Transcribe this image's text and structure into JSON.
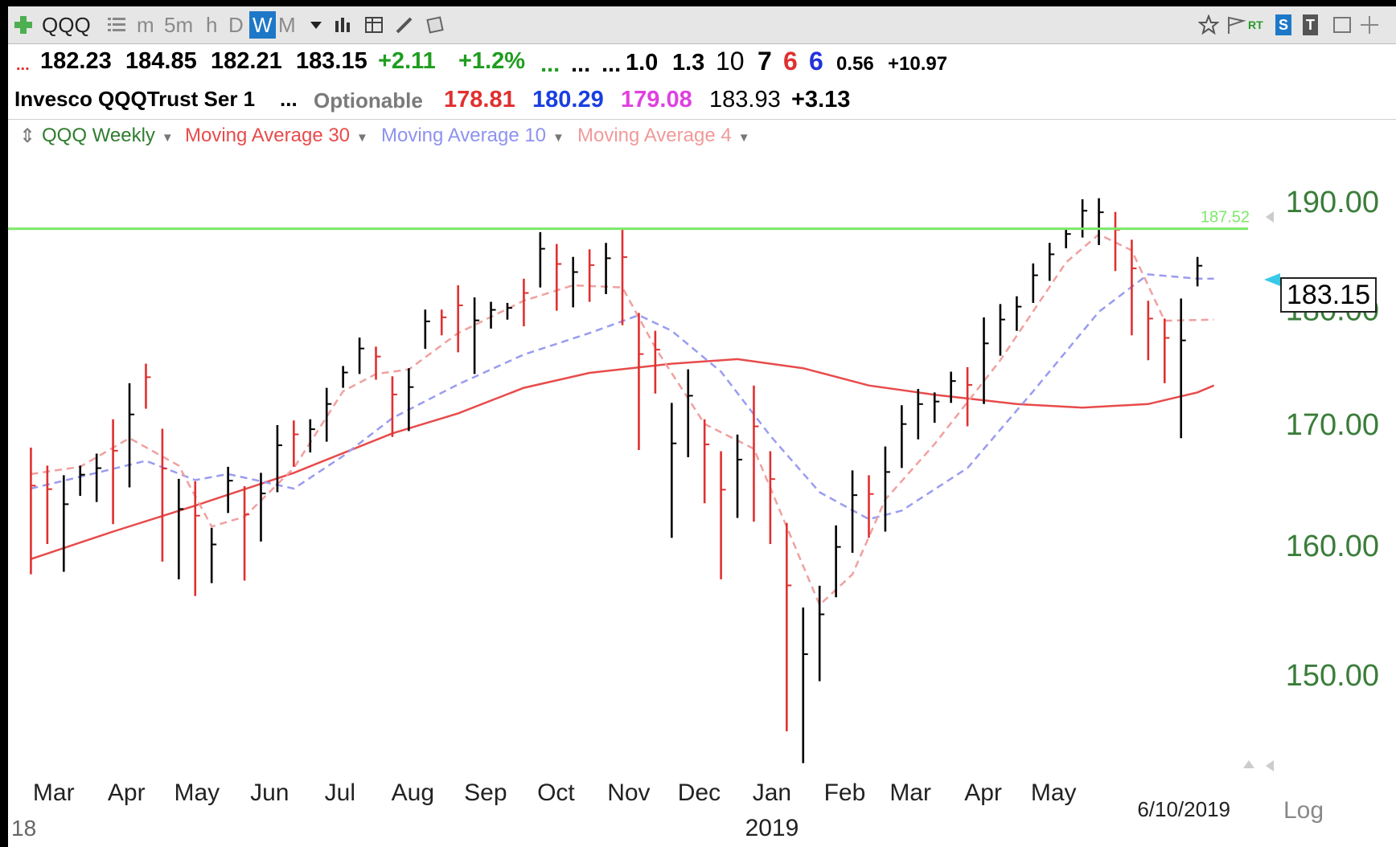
{
  "toolbar": {
    "symbol": "QQQ",
    "intervals": [
      "m",
      "5m",
      "h",
      "D",
      "W",
      "M"
    ],
    "selected_interval": "W",
    "right_badges": [
      "RT",
      "S",
      "T"
    ]
  },
  "quote": {
    "lead": "...",
    "open": "182.23",
    "high": "184.85",
    "low": "182.21",
    "close": "183.15",
    "change": "+2.11",
    "change_pct": "+1.2%",
    "dots_green": "...",
    "dots1": "...",
    "dots2": "...",
    "v1": "1.0",
    "v2": "1.3",
    "n1": "10",
    "n2": "7",
    "n3": "6",
    "n4": "6",
    "v3": "0.56",
    "v4": "+10.97"
  },
  "info": {
    "name": "Invesco QQQTrust Ser 1",
    "dots": "...",
    "optionable": "Optionable",
    "p1": "178.81",
    "p2": "180.29",
    "p3": "179.08",
    "p4": "183.93",
    "p5": "+3.13"
  },
  "legend": {
    "symbol": "QQQ Weekly",
    "ma30": "Moving Average 30",
    "ma10": "Moving Average 10",
    "ma4": "Moving Average 4"
  },
  "colors": {
    "up_bar": "#000000",
    "down_bar": "#e03030",
    "ma30": "#e84b4b",
    "ma10": "#9a9cf0",
    "ma4": "#f0a0a0",
    "line_level": "#7de86a",
    "axis_text": "#3a7d3a"
  },
  "chart_data": {
    "type": "ohlc",
    "series_name": "QQQ Weekly",
    "ylim": [
      143,
      194
    ],
    "yticks": [
      150,
      160,
      170,
      180,
      190
    ],
    "ytick_labels": [
      "150.00",
      "160.00",
      "170.00",
      "180.00",
      "190.00"
    ],
    "horizontal_line": {
      "value": 187.52,
      "label": "187.52"
    },
    "last_price": {
      "value": 183.15,
      "label": "183.15"
    },
    "x_month_labels": [
      "Mar",
      "Apr",
      "May",
      "Jun",
      "Jul",
      "Aug",
      "Sep",
      "Oct",
      "Nov",
      "Dec",
      "Jan",
      "Feb",
      "Mar",
      "Apr",
      "May"
    ],
    "x_year_labels": [
      "18",
      "2019"
    ],
    "date_label": "6/10/2019",
    "scale_label": "Log",
    "bars": [
      {
        "w": "2018-03-05",
        "h": 168.1,
        "l": 157.8,
        "dir": "dn"
      },
      {
        "w": "2018-03-12",
        "h": 166.6,
        "l": 160.2,
        "dir": "dn"
      },
      {
        "w": "2018-03-19",
        "h": 165.8,
        "l": 158.0,
        "dir": "up"
      },
      {
        "w": "2018-03-26",
        "h": 166.6,
        "l": 164.1,
        "dir": "up"
      },
      {
        "w": "2018-04-02",
        "h": 167.6,
        "l": 163.6,
        "dir": "up"
      },
      {
        "w": "2018-04-09",
        "h": 170.5,
        "l": 161.8,
        "dir": "dn"
      },
      {
        "w": "2018-04-16",
        "h": 173.6,
        "l": 164.8,
        "dir": "up"
      },
      {
        "w": "2018-04-23",
        "h": 175.3,
        "l": 171.4,
        "dir": "dn"
      },
      {
        "w": "2018-04-30",
        "h": 169.7,
        "l": 158.8,
        "dir": "dn"
      },
      {
        "w": "2018-05-07",
        "h": 165.5,
        "l": 157.4,
        "dir": "up"
      },
      {
        "w": "2018-05-14",
        "h": 165.3,
        "l": 156.1,
        "dir": "dn"
      },
      {
        "w": "2018-05-21",
        "h": 161.5,
        "l": 157.1,
        "dir": "up"
      },
      {
        "w": "2018-05-28",
        "h": 166.5,
        "l": 162.7,
        "dir": "up"
      },
      {
        "w": "2018-06-04",
        "h": 164.9,
        "l": 157.3,
        "dir": "dn"
      },
      {
        "w": "2018-06-11",
        "h": 166.0,
        "l": 160.4,
        "dir": "up"
      },
      {
        "w": "2018-06-18",
        "h": 170.0,
        "l": 164.4,
        "dir": "up"
      },
      {
        "w": "2018-06-25",
        "h": 170.4,
        "l": 166.5,
        "dir": "dn"
      },
      {
        "w": "2018-07-02",
        "h": 170.5,
        "l": 167.7,
        "dir": "up"
      },
      {
        "w": "2018-07-09",
        "h": 173.2,
        "l": 168.6,
        "dir": "up"
      },
      {
        "w": "2018-07-16",
        "h": 175.1,
        "l": 173.2,
        "dir": "up"
      },
      {
        "w": "2018-07-23",
        "h": 177.6,
        "l": 174.4,
        "dir": "up"
      },
      {
        "w": "2018-07-30",
        "h": 176.8,
        "l": 173.9,
        "dir": "dn"
      },
      {
        "w": "2018-08-06",
        "h": 174.2,
        "l": 169.0,
        "dir": "dn"
      },
      {
        "w": "2018-08-13",
        "h": 174.9,
        "l": 169.5,
        "dir": "up"
      },
      {
        "w": "2018-08-20",
        "h": 180.1,
        "l": 176.6,
        "dir": "up"
      },
      {
        "w": "2018-08-27",
        "h": 180.1,
        "l": 177.8,
        "dir": "dn"
      },
      {
        "w": "2018-09-03",
        "h": 182.3,
        "l": 176.3,
        "dir": "dn"
      },
      {
        "w": "2018-09-10",
        "h": 181.2,
        "l": 174.4,
        "dir": "up"
      },
      {
        "w": "2018-09-17",
        "h": 180.8,
        "l": 178.4,
        "dir": "up"
      },
      {
        "w": "2018-09-24",
        "h": 180.7,
        "l": 179.2,
        "dir": "up"
      },
      {
        "w": "2018-10-01",
        "h": 182.9,
        "l": 178.6,
        "dir": "dn"
      },
      {
        "w": "2018-10-08",
        "h": 187.2,
        "l": 182.1,
        "dir": "up"
      },
      {
        "w": "2018-10-15",
        "h": 186.1,
        "l": 180.0,
        "dir": "dn"
      },
      {
        "w": "2018-10-22",
        "h": 184.9,
        "l": 180.3,
        "dir": "up"
      },
      {
        "w": "2018-10-29",
        "h": 185.6,
        "l": 180.8,
        "dir": "dn"
      },
      {
        "w": "2018-11-05",
        "h": 186.2,
        "l": 181.5,
        "dir": "up"
      },
      {
        "w": "2018-11-12",
        "h": 187.6,
        "l": 178.7,
        "dir": "dn"
      },
      {
        "w": "2018-11-19",
        "h": 179.8,
        "l": 167.9,
        "dir": "dn"
      },
      {
        "w": "2018-11-26",
        "h": 178.2,
        "l": 172.7,
        "dir": "dn"
      },
      {
        "w": "2018-12-03",
        "h": 171.9,
        "l": 160.7,
        "dir": "up"
      },
      {
        "w": "2018-12-10",
        "h": 174.8,
        "l": 167.3,
        "dir": "up"
      },
      {
        "w": "2018-12-17",
        "h": 170.5,
        "l": 163.5,
        "dir": "dn"
      },
      {
        "w": "2018-12-24",
        "h": 167.8,
        "l": 157.4,
        "dir": "dn"
      },
      {
        "w": "2018-12-31",
        "h": 169.2,
        "l": 162.3,
        "dir": "up"
      },
      {
        "w": "2019-01-07",
        "h": 173.4,
        "l": 162.0,
        "dir": "dn"
      },
      {
        "w": "2019-01-14",
        "h": 167.8,
        "l": 160.2,
        "dir": "dn"
      },
      {
        "w": "2019-01-21",
        "h": 161.9,
        "l": 145.9,
        "dir": "dn"
      },
      {
        "w": "2019-01-28",
        "h": 155.2,
        "l": 143.6,
        "dir": "up"
      },
      {
        "w": "2019-02-04",
        "h": 156.9,
        "l": 149.6,
        "dir": "up"
      },
      {
        "w": "2019-02-11",
        "h": 161.7,
        "l": 156.0,
        "dir": "up"
      },
      {
        "w": "2019-02-18",
        "h": 166.2,
        "l": 159.5,
        "dir": "up"
      },
      {
        "w": "2019-02-25",
        "h": 165.8,
        "l": 160.7,
        "dir": "dn"
      },
      {
        "w": "2019-03-04",
        "h": 168.2,
        "l": 161.2,
        "dir": "up"
      },
      {
        "w": "2019-03-11",
        "h": 171.7,
        "l": 166.4,
        "dir": "up"
      },
      {
        "w": "2019-03-18",
        "h": 173.1,
        "l": 168.8,
        "dir": "up"
      },
      {
        "w": "2019-03-25",
        "h": 172.8,
        "l": 170.2,
        "dir": "up"
      },
      {
        "w": "2019-04-01",
        "h": 174.6,
        "l": 171.9,
        "dir": "up"
      },
      {
        "w": "2019-04-08",
        "h": 175.0,
        "l": 169.9,
        "dir": "dn"
      },
      {
        "w": "2019-04-15",
        "h": 179.4,
        "l": 171.8,
        "dir": "up"
      },
      {
        "w": "2019-04-22",
        "h": 180.6,
        "l": 176.0,
        "dir": "up"
      },
      {
        "w": "2019-04-29",
        "h": 181.3,
        "l": 178.2,
        "dir": "up"
      },
      {
        "w": "2019-05-06",
        "h": 184.3,
        "l": 180.7,
        "dir": "up"
      },
      {
        "w": "2019-05-13",
        "h": 186.2,
        "l": 182.7,
        "dir": "up"
      },
      {
        "w": "2019-05-20",
        "h": 187.6,
        "l": 185.7,
        "dir": "up"
      },
      {
        "w": "2019-05-27",
        "h": 190.3,
        "l": 186.7,
        "dir": "up"
      },
      {
        "w": "2019-06-03",
        "h": 190.4,
        "l": 186.0,
        "dir": "up"
      },
      {
        "w": "2019-06-10",
        "h": 189.1,
        "l": 183.6,
        "dir": "dn"
      },
      {
        "w": "2019-06-17",
        "h": 186.5,
        "l": 177.8,
        "dir": "dn"
      },
      {
        "w": "2019-06-24",
        "h": 180.9,
        "l": 175.6,
        "dir": "dn"
      },
      {
        "w": "2019-07-01",
        "h": 179.3,
        "l": 173.6,
        "dir": "dn"
      },
      {
        "w": "2019-07-08",
        "h": 181.1,
        "l": 168.9,
        "dir": "up"
      },
      {
        "w": "2019-07-15",
        "h": 184.9,
        "l": 182.2,
        "dir": "up"
      }
    ],
    "ma30": [
      {
        "w": "2018-03-05",
        "v": 159.0
      },
      {
        "w": "2018-04-09",
        "v": 161.2
      },
      {
        "w": "2018-05-14",
        "v": 163.3
      },
      {
        "w": "2018-06-25",
        "v": 166.0
      },
      {
        "w": "2018-08-06",
        "v": 169.3
      },
      {
        "w": "2018-09-03",
        "v": 171.0
      },
      {
        "w": "2018-10-01",
        "v": 173.2
      },
      {
        "w": "2018-10-29",
        "v": 174.5
      },
      {
        "w": "2018-12-03",
        "v": 175.3
      },
      {
        "w": "2018-12-31",
        "v": 175.7
      },
      {
        "w": "2019-01-28",
        "v": 174.9
      },
      {
        "w": "2019-02-25",
        "v": 173.4
      },
      {
        "w": "2019-03-25",
        "v": 172.6
      },
      {
        "w": "2019-04-29",
        "v": 171.8
      },
      {
        "w": "2019-05-27",
        "v": 171.5
      },
      {
        "w": "2019-06-24",
        "v": 171.8
      },
      {
        "w": "2019-07-15",
        "v": 172.8
      },
      {
        "w": "2019-07-22",
        "v": 173.4
      }
    ],
    "ma10": [
      {
        "w": "2018-03-05",
        "v": 164.7
      },
      {
        "w": "2018-04-02",
        "v": 166.0
      },
      {
        "w": "2018-04-23",
        "v": 167.0
      },
      {
        "w": "2018-05-14",
        "v": 165.4
      },
      {
        "w": "2018-05-28",
        "v": 165.9
      },
      {
        "w": "2018-06-11",
        "v": 165.3
      },
      {
        "w": "2018-06-25",
        "v": 164.7
      },
      {
        "w": "2018-07-16",
        "v": 167.4
      },
      {
        "w": "2018-08-06",
        "v": 170.6
      },
      {
        "w": "2018-09-03",
        "v": 173.5
      },
      {
        "w": "2018-10-01",
        "v": 176.1
      },
      {
        "w": "2018-10-29",
        "v": 178.0
      },
      {
        "w": "2018-11-19",
        "v": 179.6
      },
      {
        "w": "2018-12-03",
        "v": 178.2
      },
      {
        "w": "2018-12-24",
        "v": 174.6
      },
      {
        "w": "2019-01-14",
        "v": 169.1
      },
      {
        "w": "2019-02-04",
        "v": 164.4
      },
      {
        "w": "2019-02-25",
        "v": 162.2
      },
      {
        "w": "2019-03-11",
        "v": 162.9
      },
      {
        "w": "2019-04-08",
        "v": 166.4
      },
      {
        "w": "2019-05-06",
        "v": 172.9
      },
      {
        "w": "2019-06-03",
        "v": 179.9
      },
      {
        "w": "2019-06-24",
        "v": 183.3
      },
      {
        "w": "2019-07-15",
        "v": 182.9
      },
      {
        "w": "2019-07-22",
        "v": 182.9
      }
    ],
    "ma4": [
      {
        "w": "2018-03-05",
        "v": 165.9
      },
      {
        "w": "2018-03-26",
        "v": 166.5
      },
      {
        "w": "2018-04-16",
        "v": 168.9
      },
      {
        "w": "2018-05-07",
        "v": 166.6
      },
      {
        "w": "2018-05-21",
        "v": 161.6
      },
      {
        "w": "2018-06-04",
        "v": 162.4
      },
      {
        "w": "2018-06-25",
        "v": 166.4
      },
      {
        "w": "2018-07-16",
        "v": 172.9
      },
      {
        "w": "2018-07-30",
        "v": 174.4
      },
      {
        "w": "2018-08-13",
        "v": 174.8
      },
      {
        "w": "2018-09-03",
        "v": 178.0
      },
      {
        "w": "2018-10-01",
        "v": 180.9
      },
      {
        "w": "2018-10-22",
        "v": 182.3
      },
      {
        "w": "2018-11-12",
        "v": 182.1
      },
      {
        "w": "2018-11-26",
        "v": 176.7
      },
      {
        "w": "2018-12-17",
        "v": 170.1
      },
      {
        "w": "2019-01-07",
        "v": 168.0
      },
      {
        "w": "2019-02-04",
        "v": 155.4
      },
      {
        "w": "2019-02-18",
        "v": 157.8
      },
      {
        "w": "2019-03-04",
        "v": 163.8
      },
      {
        "w": "2019-03-25",
        "v": 168.4
      },
      {
        "w": "2019-04-22",
        "v": 175.6
      },
      {
        "w": "2019-05-20",
        "v": 184.4
      },
      {
        "w": "2019-06-03",
        "v": 187.0
      },
      {
        "w": "2019-06-17",
        "v": 185.5
      },
      {
        "w": "2019-07-01",
        "v": 179.1
      },
      {
        "w": "2019-07-22",
        "v": 179.2
      }
    ]
  }
}
